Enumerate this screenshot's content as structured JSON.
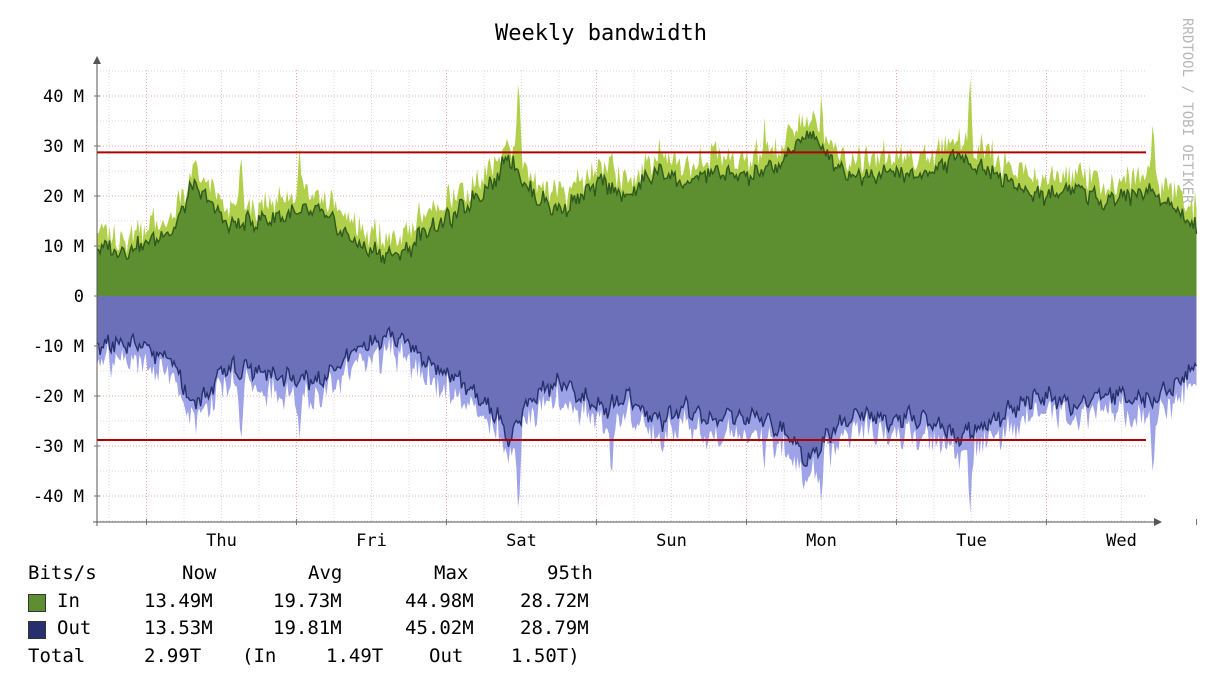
{
  "chart_data": {
    "type": "area",
    "title": "Weekly bandwidth",
    "watermark": "RRDTOOL / TOBI OETIKER",
    "x": {
      "categories": [
        "Thu",
        "Fri",
        "Sat",
        "Sun",
        "Mon",
        "Tue",
        "Wed"
      ],
      "range_days": [
        -0.33,
        7.0
      ]
    },
    "y": {
      "unit": "bits/s",
      "ylim": [
        -46000000,
        46000000
      ],
      "ticks": [
        40000000,
        30000000,
        20000000,
        10000000,
        0,
        -10000000,
        -20000000,
        -30000000,
        -40000000
      ],
      "tick_labels": [
        "40 M",
        "30 M",
        "20 M",
        "10 M",
        "0",
        "-10 M",
        "-20 M",
        "-30 M",
        "-40 M"
      ]
    },
    "grid": true,
    "series": [
      {
        "name": "In",
        "color": "#5d8e2f",
        "max_color": "#b0cf4a",
        "line_color": "#2f5a1c",
        "anchors_avg": [
          [
            -0.33,
            10
          ],
          [
            -0.16,
            9
          ],
          [
            0.0,
            10.5
          ],
          [
            0.2,
            14
          ],
          [
            0.3,
            22
          ],
          [
            0.42,
            19
          ],
          [
            0.55,
            14
          ],
          [
            0.72,
            15
          ],
          [
            0.9,
            16
          ],
          [
            1.15,
            17
          ],
          [
            1.3,
            13
          ],
          [
            1.45,
            9.5
          ],
          [
            1.65,
            8
          ],
          [
            1.75,
            9.5
          ],
          [
            1.85,
            13
          ],
          [
            2.05,
            16
          ],
          [
            2.2,
            20
          ],
          [
            2.35,
            24
          ],
          [
            2.4,
            29
          ],
          [
            2.55,
            21
          ],
          [
            2.75,
            17
          ],
          [
            2.9,
            20
          ],
          [
            3.05,
            23
          ],
          [
            3.2,
            19.5
          ],
          [
            3.35,
            24
          ],
          [
            3.45,
            25
          ],
          [
            3.6,
            22
          ],
          [
            3.75,
            25
          ],
          [
            3.9,
            24
          ],
          [
            4.05,
            24
          ],
          [
            4.25,
            27
          ],
          [
            4.4,
            33
          ],
          [
            4.55,
            28
          ],
          [
            4.65,
            25
          ],
          [
            4.75,
            24
          ],
          [
            4.95,
            25
          ],
          [
            5.1,
            24
          ],
          [
            5.25,
            25
          ],
          [
            5.4,
            28
          ],
          [
            5.55,
            26
          ],
          [
            5.7,
            24
          ],
          [
            5.85,
            21
          ],
          [
            6.0,
            20
          ],
          [
            6.2,
            22
          ],
          [
            6.35,
            19
          ],
          [
            6.5,
            20
          ],
          [
            6.7,
            21
          ],
          [
            6.85,
            18
          ],
          [
            7.0,
            13.5
          ]
        ],
        "max_spikes": [
          [
            0.63,
            29
          ],
          [
            1.02,
            30
          ],
          [
            2.48,
            45
          ],
          [
            3.1,
            31
          ],
          [
            4.12,
            36
          ],
          [
            4.5,
            42
          ],
          [
            5.49,
            45
          ],
          [
            6.71,
            36
          ]
        ],
        "legend": {
          "label": "In",
          "now": "13.49M",
          "avg": "19.73M",
          "max": "44.98M",
          "p95": "28.72M"
        }
      },
      {
        "name": "Out",
        "color": "#6b70b8",
        "max_color": "#9da3e6",
        "line_color": "#27306e",
        "anchors_avg": [
          [
            -0.33,
            -10
          ],
          [
            -0.16,
            -9
          ],
          [
            0.0,
            -10.5
          ],
          [
            0.2,
            -14
          ],
          [
            0.3,
            -22
          ],
          [
            0.42,
            -19
          ],
          [
            0.55,
            -14
          ],
          [
            0.72,
            -15
          ],
          [
            0.9,
            -16
          ],
          [
            1.15,
            -17
          ],
          [
            1.3,
            -13
          ],
          [
            1.45,
            -9.5
          ],
          [
            1.65,
            -8
          ],
          [
            1.75,
            -9.5
          ],
          [
            1.85,
            -13
          ],
          [
            2.05,
            -16
          ],
          [
            2.2,
            -20
          ],
          [
            2.35,
            -24
          ],
          [
            2.4,
            -29
          ],
          [
            2.55,
            -21
          ],
          [
            2.75,
            -17
          ],
          [
            2.9,
            -20
          ],
          [
            3.05,
            -23
          ],
          [
            3.2,
            -19.5
          ],
          [
            3.35,
            -24
          ],
          [
            3.45,
            -25
          ],
          [
            3.6,
            -22
          ],
          [
            3.75,
            -25
          ],
          [
            3.9,
            -24
          ],
          [
            4.05,
            -24
          ],
          [
            4.25,
            -27
          ],
          [
            4.4,
            -33
          ],
          [
            4.55,
            -28
          ],
          [
            4.65,
            -25
          ],
          [
            4.75,
            -24
          ],
          [
            4.95,
            -25
          ],
          [
            5.1,
            -24
          ],
          [
            5.25,
            -25
          ],
          [
            5.4,
            -28
          ],
          [
            5.55,
            -26
          ],
          [
            5.7,
            -24
          ],
          [
            5.85,
            -21
          ],
          [
            6.0,
            -20
          ],
          [
            6.2,
            -22
          ],
          [
            6.35,
            -19
          ],
          [
            6.5,
            -20
          ],
          [
            6.7,
            -21
          ],
          [
            6.85,
            -18
          ],
          [
            7.0,
            -13.5
          ]
        ],
        "max_spikes": [
          [
            0.63,
            -30
          ],
          [
            1.02,
            -29
          ],
          [
            2.48,
            -45
          ],
          [
            3.1,
            -38
          ],
          [
            4.12,
            -35
          ],
          [
            4.5,
            -43
          ],
          [
            5.49,
            -45
          ],
          [
            6.71,
            -37
          ]
        ],
        "legend": {
          "label": "Out",
          "now": "13.53M",
          "avg": "19.81M",
          "max": "45.02M",
          "p95": "28.79M"
        }
      }
    ],
    "percentile_lines": [
      {
        "label": "95th In",
        "value": 28720000,
        "color": "#b00000"
      },
      {
        "label": "95th Out",
        "value": -28790000,
        "color": "#b00000"
      }
    ]
  },
  "legend": {
    "header": {
      "unit": "Bits/s",
      "now": "Now",
      "avg": "Avg",
      "max": "Max",
      "p95": "95th"
    },
    "total": {
      "label": "Total",
      "value": "2.99T",
      "in_label": "(In",
      "in_value": "1.49T",
      "out_label": "Out",
      "out_value": "1.50T)"
    }
  }
}
